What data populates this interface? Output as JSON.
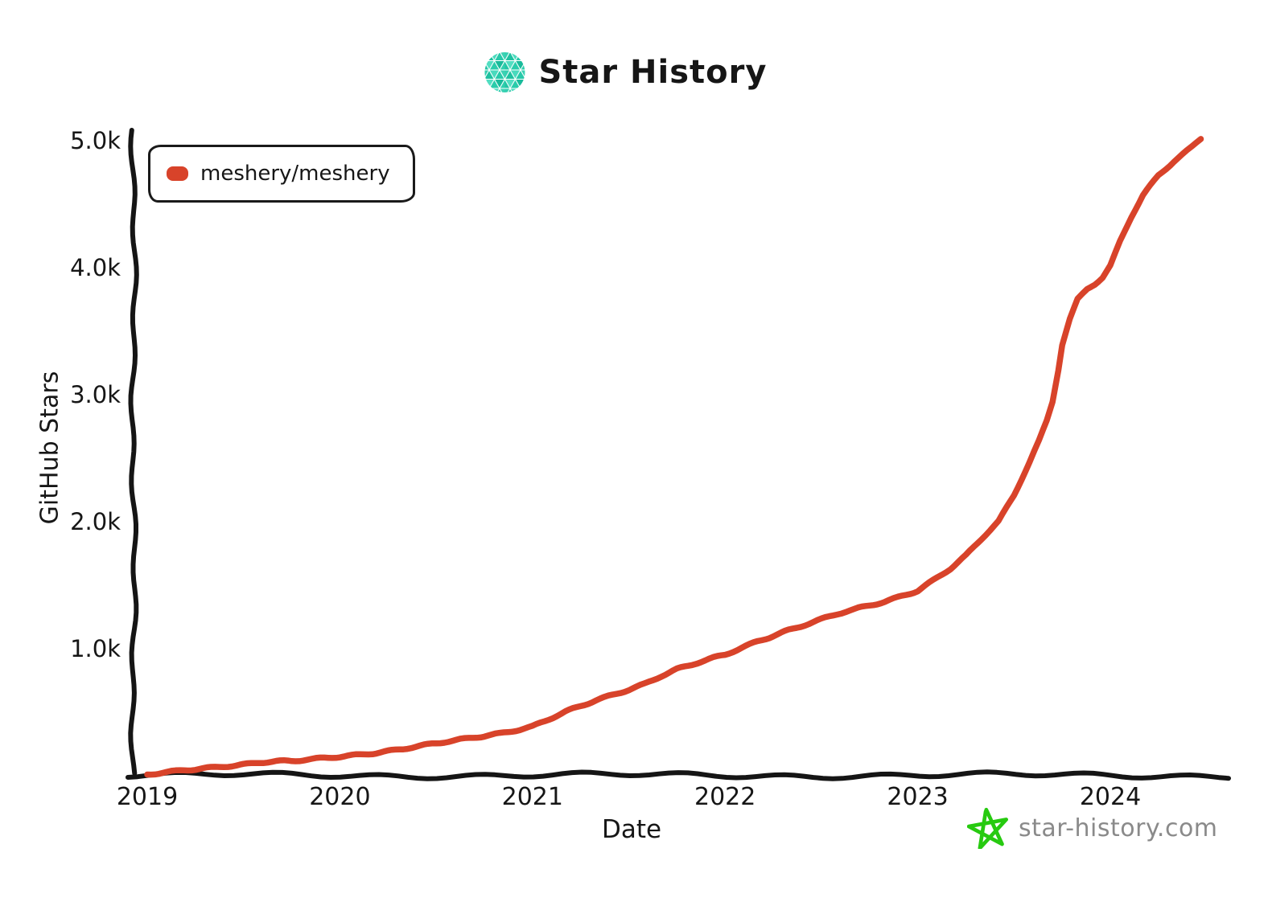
{
  "header": {
    "title": "Star History"
  },
  "icons": {
    "logo": "star-history-logo (teal triangle-mosaic circle)",
    "footer_star": "green hand-drawn star doodle"
  },
  "legend": {
    "label": "meshery/meshery"
  },
  "axes": {
    "y_label": "GitHub Stars",
    "x_label": "Date",
    "y_ticks": [
      {
        "label": "5.0k",
        "value": 5000
      },
      {
        "label": "4.0k",
        "value": 4000
      },
      {
        "label": "3.0k",
        "value": 3000
      },
      {
        "label": "2.0k",
        "value": 2000
      },
      {
        "label": "1.0k",
        "value": 1000
      }
    ],
    "x_ticks": [
      {
        "label": "2019",
        "year": 2019
      },
      {
        "label": "2020",
        "year": 2020
      },
      {
        "label": "2021",
        "year": 2021
      },
      {
        "label": "2022",
        "year": 2022
      },
      {
        "label": "2023",
        "year": 2023
      },
      {
        "label": "2024",
        "year": 2024
      }
    ]
  },
  "footer": {
    "site": "star-history.com"
  },
  "colors": {
    "line": "#d8432a",
    "axis": "#151515",
    "logo_teal": "#27c7a6",
    "logo_teal_light": "#49dabd",
    "logo_teal_dark": "#19bb9b",
    "star_green": "#27ca10",
    "footer_text": "#8a8a8a"
  },
  "chart_data": {
    "type": "line",
    "title": "Star History",
    "xlabel": "Date",
    "ylabel": "GitHub Stars",
    "xlim": [
      2019,
      2024.55
    ],
    "ylim": [
      0,
      5000
    ],
    "grid": false,
    "legend_position": "top-left",
    "x": [
      2019.0,
      2019.08,
      2019.17,
      2019.25,
      2019.33,
      2019.42,
      2019.5,
      2019.58,
      2019.67,
      2019.75,
      2019.83,
      2019.92,
      2020.0,
      2020.17,
      2020.33,
      2020.5,
      2020.67,
      2020.83,
      2021.0,
      2021.17,
      2021.33,
      2021.5,
      2021.58,
      2021.67,
      2021.75,
      2021.83,
      2021.92,
      2022.0,
      2022.17,
      2022.33,
      2022.5,
      2022.58,
      2022.67,
      2022.75,
      2022.83,
      2022.92,
      2023.0,
      2023.08,
      2023.17,
      2023.25,
      2023.33,
      2023.42,
      2023.5,
      2023.58,
      2023.63,
      2023.67,
      2023.7,
      2023.73,
      2023.75,
      2023.79,
      2023.83,
      2023.88,
      2023.92,
      2023.96,
      2024.0,
      2024.05,
      2024.11,
      2024.17,
      2024.25,
      2024.33,
      2024.42,
      2024.47
    ],
    "series": [
      {
        "name": "meshery/meshery",
        "values": [
          10,
          22,
          35,
          48,
          62,
          78,
          92,
          108,
          116,
          114,
          123,
          135,
          148,
          180,
          215,
          252,
          292,
          335,
          390,
          500,
          590,
          680,
          725,
          790,
          840,
          875,
          915,
          950,
          1060,
          1150,
          1230,
          1270,
          1305,
          1340,
          1370,
          1420,
          1460,
          1540,
          1630,
          1730,
          1860,
          2000,
          2210,
          2470,
          2640,
          2800,
          2950,
          3200,
          3400,
          3600,
          3750,
          3830,
          3870,
          3920,
          4010,
          4200,
          4400,
          4570,
          4730,
          4840,
          4950,
          5020
        ]
      }
    ]
  }
}
